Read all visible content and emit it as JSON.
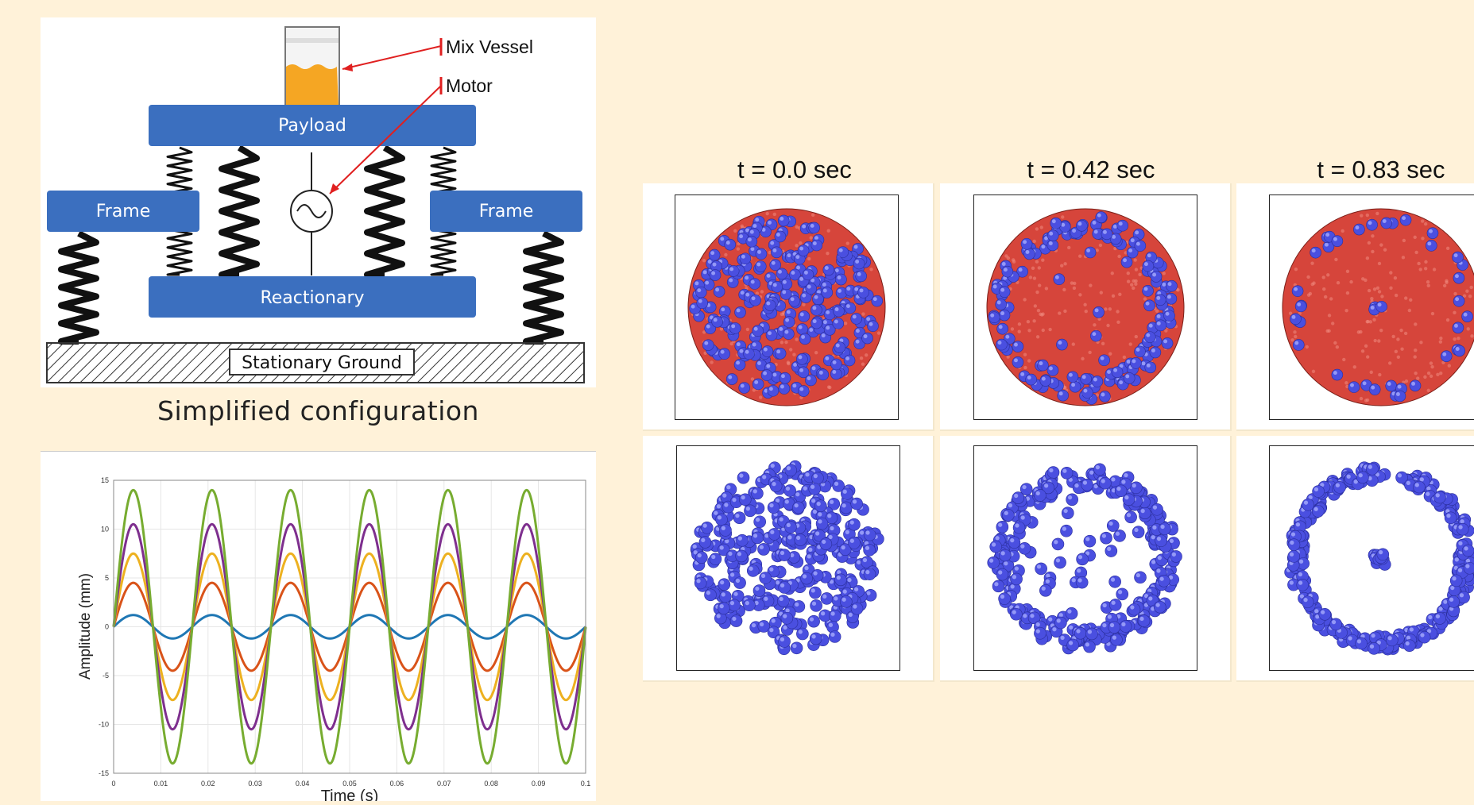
{
  "diagram": {
    "labels": {
      "mix_vessel": "Mix Vessel",
      "motor": "Motor",
      "payload": "Payload",
      "frame_left": "Frame",
      "frame_right": "Frame",
      "reactionary": "Reactionary",
      "ground": "Stationary Ground"
    },
    "caption": "Simplified configuration",
    "colors": {
      "block": "#3b6fbf",
      "block_text": "#ffffff",
      "fluid": "#f5a623",
      "arrow": "#e02020"
    }
  },
  "chart_data": {
    "type": "line",
    "title": "",
    "xlabel": "Time (s)",
    "ylabel": "Amplitude (mm)",
    "xlim": [
      0,
      0.1
    ],
    "ylim": [
      -15,
      15
    ],
    "xticks": [
      0,
      0.01,
      0.02,
      0.03,
      0.04,
      0.05,
      0.06,
      0.07,
      0.08,
      0.09,
      0.1
    ],
    "yticks": [
      -15,
      -10,
      -5,
      0,
      5,
      10,
      15
    ],
    "grid": true,
    "frequency_hz": 60,
    "series": [
      {
        "amplitude": 1.2,
        "color": "#1f77b4"
      },
      {
        "amplitude": 4.5,
        "color": "#d95319"
      },
      {
        "amplitude": 7.5,
        "color": "#edb120"
      },
      {
        "amplitude": 10.5,
        "color": "#7e2f8e"
      },
      {
        "amplitude": 14,
        "color": "#77ac30"
      }
    ]
  },
  "simulation": {
    "time_labels": [
      "t = 0.0 sec",
      "t = 0.42 sec",
      "t = 0.83 sec"
    ],
    "colors": {
      "particle_blue": "#4a4fe0",
      "particle_red": "#d6453b"
    }
  }
}
